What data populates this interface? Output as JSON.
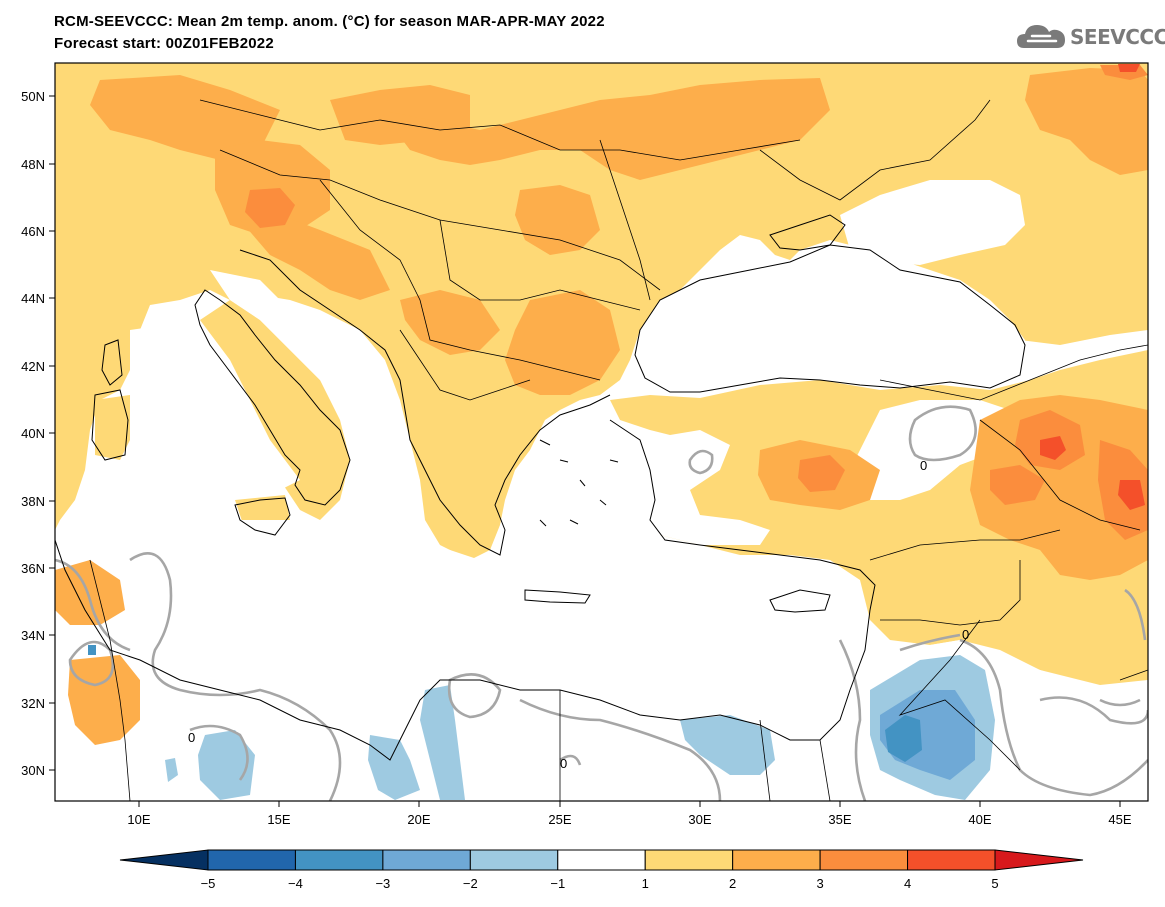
{
  "header": {
    "title_line1": "RCM-SEEVCCC: Mean 2m temp. anom. (°C) for season MAR-APR-MAY 2022",
    "title_line2": "Forecast start: 00Z01FEB2022",
    "logo_text": "SEEVCCC"
  },
  "map": {
    "variable": "Mean 2m temperature anomaly",
    "units": "°C",
    "season": "MAR-APR-MAY 2022",
    "lon_range": [
      7,
      46
    ],
    "lat_range": [
      29,
      51
    ],
    "lat_ticks": [
      "50N",
      "48N",
      "46N",
      "44N",
      "42N",
      "40N",
      "38N",
      "36N",
      "34N",
      "32N",
      "30N"
    ],
    "lon_ticks": [
      "10E",
      "15E",
      "20E",
      "25E",
      "30E",
      "35E",
      "40E",
      "45E"
    ],
    "contour_label": "0"
  },
  "colorbar": {
    "labels": [
      "−5",
      "−4",
      "−3",
      "−2",
      "−1",
      "1",
      "2",
      "3",
      "4",
      "5"
    ],
    "bins": [
      {
        "range": "<-5",
        "color": "#053061"
      },
      {
        "range": "-5 to -4",
        "color": "#2166ac"
      },
      {
        "range": "-4 to -3",
        "color": "#4393c3"
      },
      {
        "range": "-3 to -2",
        "color": "#6fa9d6"
      },
      {
        "range": "-2 to -1",
        "color": "#9ecae1"
      },
      {
        "range": "-1 to 1",
        "color": "#ffffff"
      },
      {
        "range": "1 to 2",
        "color": "#fed976"
      },
      {
        "range": "2 to 3",
        "color": "#fdae4b"
      },
      {
        "range": "3 to 4",
        "color": "#fb8d3d"
      },
      {
        "range": "4 to 5",
        "color": "#f4502a"
      },
      {
        "range": ">5",
        "color": "#d7191c"
      }
    ]
  }
}
